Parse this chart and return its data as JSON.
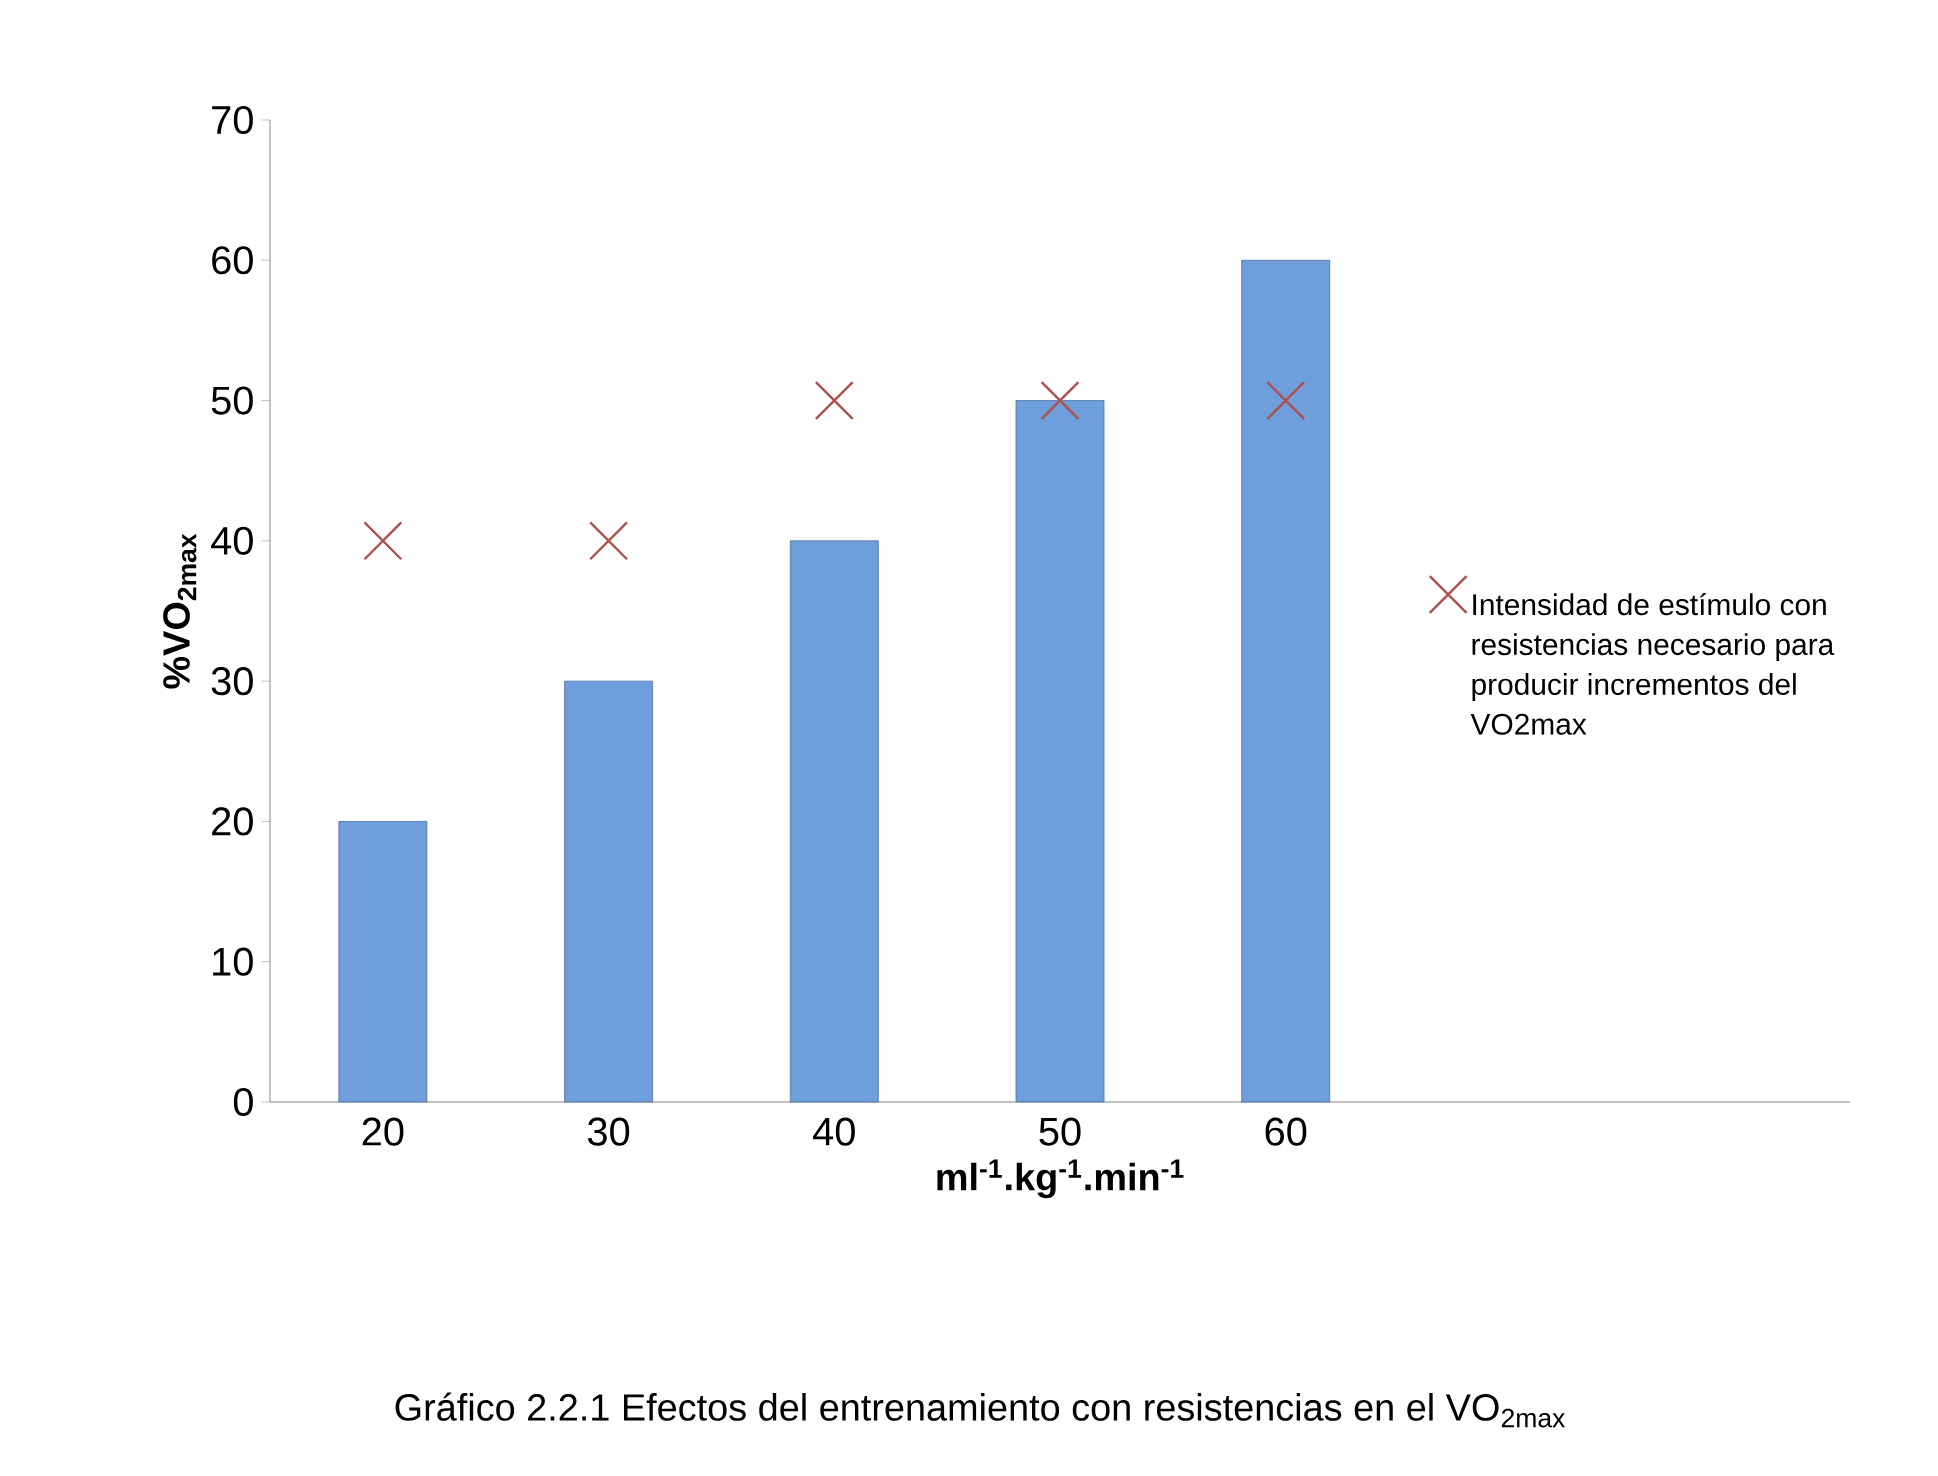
{
  "chart_data": {
    "type": "bar",
    "ylabel": "%VO$_{2max}$",
    "xlabel": "ml$^{-1}$.kg$^{-1}$.min$^{-1}$",
    "categories": [
      "20",
      "30",
      "40",
      "50",
      "60",
      null,
      null
    ],
    "series": [
      {
        "color": "#6e9fdc",
        "values": [
          20,
          30,
          40,
          50,
          60,
          null,
          null
        ]
      },
      {
        "type": "scatter",
        "name": "Intensidad de estímulo con resistencias necesario para producir incrementos del VO2max",
        "color": "#b0504c",
        "marker": "cross",
        "values": [
          40,
          40,
          50,
          50,
          50,
          null,
          null
        ]
      }
    ],
    "ylim": [
      0,
      70
    ],
    "yticks": [
      0,
      10,
      20,
      30,
      40,
      50,
      60,
      70
    ],
    "legend": "right",
    "annotations": [
      "Gráfico 2.2.1 Efectos del entrenamiento con resistencias en el VO$_{2max}$"
    ]
  }
}
